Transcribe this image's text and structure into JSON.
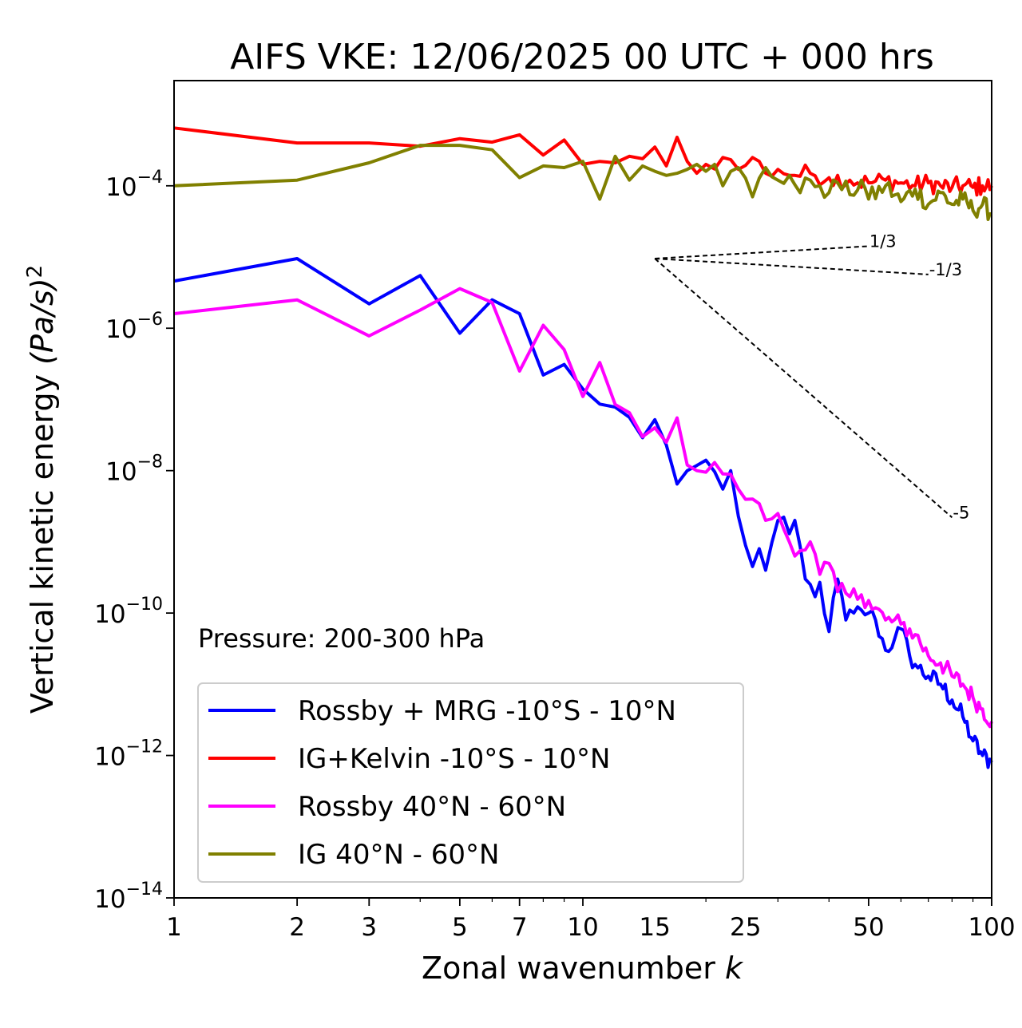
{
  "chart_data": {
    "type": "line",
    "title": "AIFS VKE: 12/06/2025 00 UTC + 000 hrs",
    "xlabel_text": "Zonal wavenumber ",
    "xlabel_var": "k",
    "ylabel_text": "Vertical kinetic energy ",
    "ylabel_units": "(Pa/s)",
    "ylabel_power": "2",
    "x_scale": "log",
    "y_scale": "log",
    "xlim": [
      1,
      100
    ],
    "ylim": [
      1e-14,
      0.003
    ],
    "x_ticks": [
      {
        "value": 1,
        "label": "1"
      },
      {
        "value": 2,
        "label": "2"
      },
      {
        "value": 3,
        "label": "3"
      },
      {
        "value": 5,
        "label": "5"
      },
      {
        "value": 7,
        "label": "7"
      },
      {
        "value": 10,
        "label": "10"
      },
      {
        "value": 15,
        "label": "15"
      },
      {
        "value": 25,
        "label": "25"
      },
      {
        "value": 50,
        "label": "50"
      },
      {
        "value": 100,
        "label": "100"
      }
    ],
    "y_ticks": [
      {
        "value": 0.0001,
        "base": "10",
        "exp": "−4"
      },
      {
        "value": 1e-06,
        "base": "10",
        "exp": "−6"
      },
      {
        "value": 1e-08,
        "base": "10",
        "exp": "−8"
      },
      {
        "value": 1e-10,
        "base": "10",
        "exp": "−10"
      },
      {
        "value": 1e-12,
        "base": "10",
        "exp": "−12"
      },
      {
        "value": 1e-14,
        "base": "10",
        "exp": "−14"
      }
    ],
    "annotation": "Pressure: 200-300 hPa",
    "grid": false,
    "legend_position": "lower-left",
    "series": [
      {
        "name": "Rossby + MRG -10°S - 10°N",
        "color": "#0000ff",
        "keypoints": [
          [
            1,
            4.6e-06
          ],
          [
            2,
            9.5e-06
          ],
          [
            3,
            2.2e-06
          ],
          [
            4,
            5.5e-06
          ],
          [
            5,
            8.5e-07
          ],
          [
            6,
            2.5e-06
          ],
          [
            7,
            1.6e-06
          ],
          [
            8,
            2.2e-07
          ],
          [
            9,
            3.1e-07
          ],
          [
            10,
            1.4e-07
          ],
          [
            11,
            8.6e-08
          ],
          [
            12,
            7.8e-08
          ],
          [
            13,
            5.6e-08
          ],
          [
            14,
            2.9e-08
          ],
          [
            15,
            5.2e-08
          ],
          [
            16,
            2.3e-08
          ],
          [
            17,
            6.5e-09
          ],
          [
            18,
            1e-08
          ],
          [
            20,
            1.4e-08
          ],
          [
            22,
            5.5e-09
          ],
          [
            23,
            1e-08
          ],
          [
            24,
            2.3e-09
          ],
          [
            26,
            4.5e-10
          ],
          [
            27,
            8e-10
          ],
          [
            28,
            4e-10
          ],
          [
            30,
            2e-09
          ],
          [
            32,
            1.3e-09
          ],
          [
            33,
            2e-09
          ],
          [
            35,
            3e-10
          ],
          [
            37,
            1.7e-10
          ],
          [
            38,
            2.7e-10
          ],
          [
            40,
            5.5e-11
          ],
          [
            42,
            3e-10
          ],
          [
            44,
            8e-11
          ],
          [
            46,
            1e-10
          ],
          [
            48,
            1.1e-10
          ],
          [
            50,
            1e-10
          ],
          [
            52,
            8e-11
          ],
          [
            55,
            3e-11
          ],
          [
            58,
            4.5e-11
          ],
          [
            60,
            6e-11
          ],
          [
            63,
            2.5e-11
          ],
          [
            66,
            1.7e-11
          ],
          [
            70,
            1.3e-11
          ],
          [
            75,
            1e-11
          ],
          [
            80,
            6e-12
          ],
          [
            85,
            3.5e-12
          ],
          [
            90,
            1.6e-12
          ],
          [
            95,
            1e-12
          ],
          [
            100,
            8e-13
          ]
        ]
      },
      {
        "name": "IG+Kelvin -10°S - 10°N",
        "color": "#ff0000",
        "keypoints": [
          [
            1,
            0.00065
          ],
          [
            2,
            0.0004
          ],
          [
            3,
            0.0004
          ],
          [
            4,
            0.00036
          ],
          [
            5,
            0.00046
          ],
          [
            6,
            0.00041
          ],
          [
            7,
            0.00052
          ],
          [
            8,
            0.00027
          ],
          [
            9,
            0.00044
          ],
          [
            10,
            0.0002
          ],
          [
            11,
            0.00022
          ],
          [
            12,
            0.00021
          ],
          [
            13,
            0.00026
          ],
          [
            14,
            0.00024
          ],
          [
            15,
            0.00035
          ],
          [
            16,
            0.00019
          ],
          [
            17,
            0.00048
          ],
          [
            18,
            0.00022
          ],
          [
            19,
            0.00015
          ],
          [
            20,
            0.0002
          ],
          [
            22,
            0.00025
          ],
          [
            24,
            0.00017
          ],
          [
            26,
            0.00025
          ],
          [
            28,
            0.00015
          ],
          [
            30,
            0.00017
          ],
          [
            33,
            0.00014
          ],
          [
            36,
            0.00015
          ],
          [
            40,
            0.00013
          ],
          [
            45,
            0.00012
          ],
          [
            50,
            0.00011
          ],
          [
            55,
            0.00012
          ],
          [
            60,
            0.00011
          ],
          [
            65,
            0.0001
          ],
          [
            70,
            0.00011
          ],
          [
            75,
            0.0001
          ],
          [
            80,
            9.5e-05
          ],
          [
            85,
            0.0001
          ],
          [
            90,
            9.5e-05
          ],
          [
            95,
            0.0001
          ],
          [
            100,
            0.0001
          ]
        ]
      },
      {
        "name": "Rossby 40°N - 60°N",
        "color": "#ff00ff",
        "keypoints": [
          [
            1,
            1.6e-06
          ],
          [
            2,
            2.5e-06
          ],
          [
            3,
            7.8e-07
          ],
          [
            4,
            1.8e-06
          ],
          [
            5,
            3.6e-06
          ],
          [
            6,
            2.3e-06
          ],
          [
            7,
            2.5e-07
          ],
          [
            8,
            1.1e-06
          ],
          [
            9,
            5e-07
          ],
          [
            10,
            1.1e-07
          ],
          [
            11,
            3.3e-07
          ],
          [
            12,
            8.5e-08
          ],
          [
            13,
            6.5e-08
          ],
          [
            14,
            3e-08
          ],
          [
            15,
            4e-08
          ],
          [
            16,
            2.5e-08
          ],
          [
            17,
            5.5e-08
          ],
          [
            18,
            1.2e-08
          ],
          [
            19,
            1e-08
          ],
          [
            20,
            9.5e-09
          ],
          [
            21,
            1.3e-08
          ],
          [
            22,
            9e-09
          ],
          [
            24,
            5.5e-09
          ],
          [
            26,
            4e-09
          ],
          [
            28,
            2e-09
          ],
          [
            30,
            2.5e-09
          ],
          [
            32,
            1e-09
          ],
          [
            34,
            7.5e-10
          ],
          [
            36,
            1e-09
          ],
          [
            38,
            3.5e-10
          ],
          [
            40,
            5e-10
          ],
          [
            42,
            2e-10
          ],
          [
            45,
            1.7e-10
          ],
          [
            48,
            1.8e-10
          ],
          [
            50,
            1.5e-10
          ],
          [
            55,
            8e-11
          ],
          [
            60,
            7e-11
          ],
          [
            65,
            5e-11
          ],
          [
            70,
            2.5e-11
          ],
          [
            75,
            2e-11
          ],
          [
            80,
            1.3e-11
          ],
          [
            85,
            1e-11
          ],
          [
            90,
            6.5e-12
          ],
          [
            95,
            4.5e-12
          ],
          [
            100,
            3e-12
          ]
        ]
      },
      {
        "name": "IG 40°N - 60°N",
        "color": "#808000",
        "keypoints": [
          [
            1,
            0.0001
          ],
          [
            2,
            0.00012
          ],
          [
            3,
            0.00021
          ],
          [
            4,
            0.00037
          ],
          [
            5,
            0.00037
          ],
          [
            6,
            0.00032
          ],
          [
            7,
            0.00013
          ],
          [
            8,
            0.00019
          ],
          [
            9,
            0.00018
          ],
          [
            10,
            0.00022
          ],
          [
            11,
            6.5e-05
          ],
          [
            12,
            0.00026
          ],
          [
            13,
            0.00012
          ],
          [
            14,
            0.00019
          ],
          [
            15,
            0.00016
          ],
          [
            16,
            0.00014
          ],
          [
            17,
            0.00015
          ],
          [
            18,
            0.00017
          ],
          [
            19,
            0.0002
          ],
          [
            20,
            0.00016
          ],
          [
            21,
            0.0002
          ],
          [
            22,
            0.0001
          ],
          [
            24,
            0.00018
          ],
          [
            26,
            7e-05
          ],
          [
            28,
            0.00018
          ],
          [
            30,
            0.00012
          ],
          [
            32,
            0.00014
          ],
          [
            34,
            8e-05
          ],
          [
            36,
            0.00012
          ],
          [
            38,
            0.0001
          ],
          [
            40,
            8e-05
          ],
          [
            42,
            0.00011
          ],
          [
            45,
            7.5e-05
          ],
          [
            48,
            0.00012
          ],
          [
            50,
            6.5e-05
          ],
          [
            55,
            0.0001
          ],
          [
            60,
            6e-05
          ],
          [
            65,
            9e-05
          ],
          [
            70,
            5.5e-05
          ],
          [
            75,
            8e-05
          ],
          [
            80,
            5.5e-05
          ],
          [
            85,
            6.5e-05
          ],
          [
            90,
            4.5e-05
          ],
          [
            95,
            5.5e-05
          ],
          [
            100,
            4e-05
          ]
        ]
      }
    ],
    "reference_slopes": [
      {
        "label": "1/3",
        "slope": 0.3333,
        "x0": 15,
        "y0": 9.5e-06,
        "x1": 50
      },
      {
        "label": "-1/3",
        "slope": -0.3333,
        "x0": 15,
        "y0": 9.5e-06,
        "x1": 70
      },
      {
        "label": "-5",
        "slope": -5,
        "x0": 15,
        "y0": 9.5e-06,
        "x1": 80
      }
    ]
  }
}
